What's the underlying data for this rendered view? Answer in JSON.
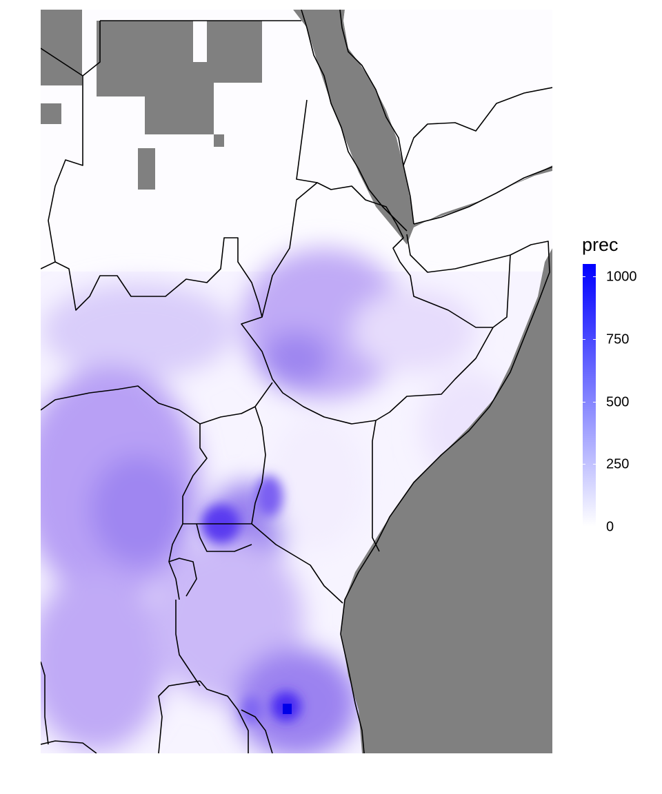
{
  "map": {
    "variable": "prec",
    "background_color": "#808080",
    "outline_color": "#000000",
    "low_color": "#ffffff",
    "high_color": "#0000ff",
    "region": "East Africa / Horn of Africa"
  },
  "legend": {
    "title": "prec",
    "min": 0,
    "max": 1050,
    "ticks": [
      {
        "label": "1000",
        "value": 1000
      },
      {
        "label": "750",
        "value": 750
      },
      {
        "label": "500",
        "value": 500
      },
      {
        "label": "250",
        "value": 250
      },
      {
        "label": "0",
        "value": 0
      }
    ]
  }
}
